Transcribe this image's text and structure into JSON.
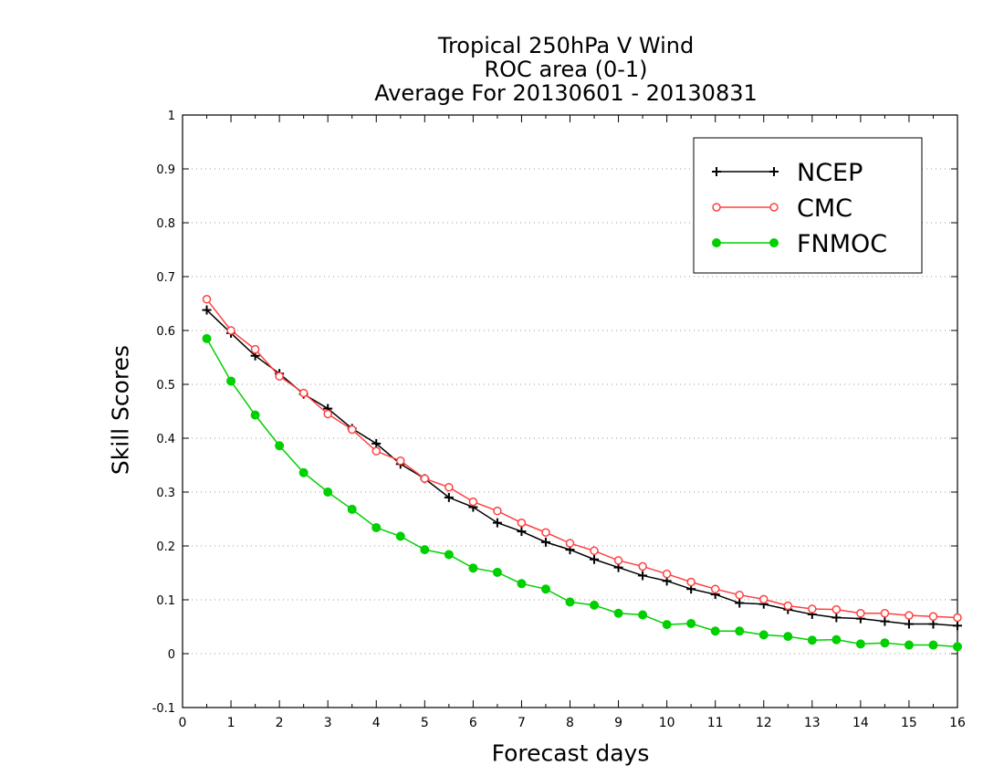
{
  "chart_data": {
    "type": "line",
    "title": [
      "Tropical 250hPa V Wind",
      "ROC area (0-1)",
      "Average For 20130601 - 20130831"
    ],
    "xlabel": "Forecast days",
    "ylabel": "Skill Scores",
    "xlim": [
      0,
      16
    ],
    "ylim": [
      -0.1,
      1
    ],
    "xticks": [
      "0",
      "1",
      "2",
      "3",
      "4",
      "5",
      "6",
      "7",
      "8",
      "9",
      "10",
      "11",
      "12",
      "13",
      "14",
      "15",
      "16"
    ],
    "yticks": [
      "-0.1",
      "0",
      "0.1",
      "0.2",
      "0.3",
      "0.4",
      "0.5",
      "0.6",
      "0.7",
      "0.8",
      "0.9",
      "1"
    ],
    "grid": "horizontal dotted",
    "legend_position": "top-right",
    "x": [
      0.5,
      1,
      1.5,
      2,
      2.5,
      3,
      3.5,
      4,
      4.5,
      5,
      5.5,
      6,
      6.5,
      7,
      7.5,
      8,
      8.5,
      9,
      9.5,
      10,
      10.5,
      11,
      11.5,
      12,
      12.5,
      13,
      13.5,
      14,
      14.5,
      15,
      15.5,
      16
    ],
    "series": [
      {
        "name": "NCEP",
        "color": "#000000",
        "marker": "plus",
        "values": [
          0.638,
          0.595,
          0.553,
          0.52,
          0.482,
          0.455,
          0.418,
          0.39,
          0.352,
          0.325,
          0.29,
          0.272,
          0.243,
          0.227,
          0.207,
          0.193,
          0.175,
          0.16,
          0.145,
          0.135,
          0.12,
          0.11,
          0.094,
          0.092,
          0.082,
          0.073,
          0.067,
          0.065,
          0.06,
          0.055,
          0.055,
          0.052
        ]
      },
      {
        "name": "CMC",
        "color": "#ff4040",
        "marker": "open-circle",
        "values": [
          0.658,
          0.6,
          0.565,
          0.515,
          0.484,
          0.445,
          0.416,
          0.376,
          0.358,
          0.325,
          0.309,
          0.282,
          0.265,
          0.243,
          0.225,
          0.205,
          0.191,
          0.173,
          0.162,
          0.148,
          0.133,
          0.12,
          0.109,
          0.101,
          0.089,
          0.083,
          0.082,
          0.075,
          0.075,
          0.071,
          0.069,
          0.067
        ]
      },
      {
        "name": "FNMOC",
        "color": "#00d000",
        "marker": "filled-circle",
        "values": [
          0.585,
          0.506,
          0.443,
          0.386,
          0.336,
          0.3,
          0.268,
          0.234,
          0.218,
          0.193,
          0.184,
          0.159,
          0.151,
          0.13,
          0.12,
          0.096,
          0.09,
          0.075,
          0.072,
          0.054,
          0.056,
          0.042,
          0.042,
          0.035,
          0.032,
          0.025,
          0.026,
          0.018,
          0.02,
          0.016,
          0.016,
          0.013
        ]
      }
    ]
  }
}
